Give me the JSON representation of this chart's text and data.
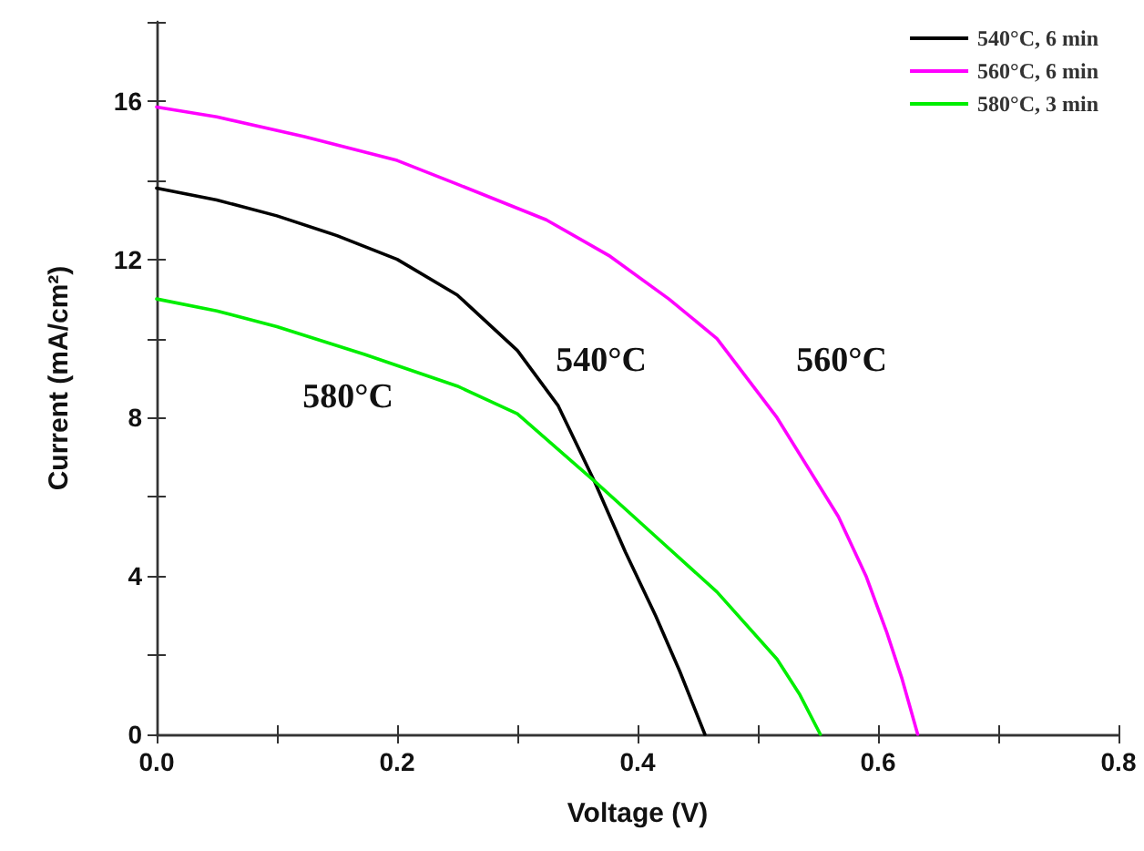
{
  "chart_data": {
    "type": "line",
    "xlabel": "Voltage (V)",
    "ylabel": "Current (mA/cm²)",
    "xlim": [
      0,
      0.8
    ],
    "ylim": [
      0,
      18
    ],
    "xticks": [
      {
        "value": 0,
        "label": "0.0"
      },
      {
        "value": 0.1,
        "label": null
      },
      {
        "value": 0.2,
        "label": "0.2"
      },
      {
        "value": 0.3,
        "label": null
      },
      {
        "value": 0.4,
        "label": "0.4"
      },
      {
        "value": 0.5,
        "label": null
      },
      {
        "value": 0.6,
        "label": "0.6"
      },
      {
        "value": 0.7,
        "label": null
      },
      {
        "value": 0.8,
        "label": "0.8"
      }
    ],
    "yticks": [
      0,
      {
        "value": 2,
        "label": null
      },
      4,
      {
        "value": 6,
        "label": null
      },
      8,
      {
        "value": 10,
        "label": null
      },
      12,
      {
        "value": 14,
        "label": null
      },
      16,
      {
        "value": 18,
        "label": null
      }
    ],
    "grid": false,
    "legend": "top right",
    "marker": "none",
    "line_style": "solid",
    "series": [
      {
        "name": "540°C, 6 min",
        "color": "#000000",
        "x": [
          0,
          0.05,
          0.1,
          0.15,
          0.2,
          0.25,
          0.3,
          0.334,
          0.364,
          0.39,
          0.415,
          0.435,
          0.456
        ],
        "values": [
          13.8,
          13.5,
          13.1,
          12.6,
          12.0,
          11.1,
          9.7,
          8.3,
          6.4,
          4.6,
          3.0,
          1.6,
          0
        ]
      },
      {
        "name": "560°C, 6 min",
        "color": "#ff00ff",
        "x": [
          0,
          0.05,
          0.123,
          0.2,
          0.25,
          0.324,
          0.376,
          0.426,
          0.466,
          0.516,
          0.567,
          0.59,
          0.607,
          0.62,
          0.633
        ],
        "values": [
          15.85,
          15.6,
          15.1,
          14.5,
          13.9,
          13.0,
          12.1,
          11.0,
          10.0,
          8.0,
          5.5,
          4.0,
          2.6,
          1.4,
          0
        ]
      },
      {
        "name": "580°C, 3 min",
        "color": "#00ee00",
        "x": [
          0,
          0.05,
          0.1,
          0.173,
          0.25,
          0.3,
          0.364,
          0.415,
          0.466,
          0.516,
          0.535,
          0.552
        ],
        "values": [
          11.0,
          10.7,
          10.3,
          9.6,
          8.8,
          8.1,
          6.4,
          5.0,
          3.6,
          1.9,
          1.0,
          0
        ]
      }
    ],
    "annotations": [
      "540°C",
      "580°C",
      "560°C"
    ]
  }
}
